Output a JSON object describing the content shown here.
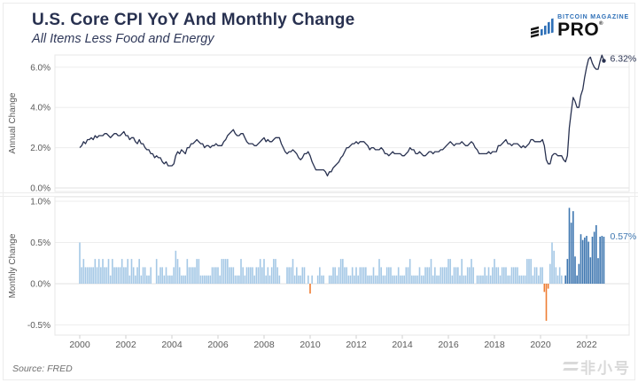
{
  "header": {
    "title": "U.S. Core CPI YoY And Monthly Change",
    "subtitle": "All Items Less Food and Energy",
    "logo": {
      "brand": "BITCOIN MAGAZINE",
      "product": "PRO",
      "reg": "®"
    }
  },
  "footer": {
    "source": "Source: FRED",
    "watermark": "非小号"
  },
  "colors": {
    "navy": "#283150",
    "bar_light": "#a5c8e6",
    "bar_recent": "#3d76b0",
    "bar_negative": "#ee7d33",
    "annotation_blue": "#3d76b0",
    "axis_text": "#595959",
    "grid": "#ededed",
    "border": "#e7e7e7"
  },
  "chart_data": [
    {
      "type": "line",
      "title": "U.S. Core CPI YoY And Monthly Change",
      "subtitle": "All Items Less Food and Energy",
      "series_name": "Core CPI Annual Change (YoY)",
      "ylabel": "Annual Change",
      "yticks": [
        0,
        2,
        4,
        6
      ],
      "ytick_labels": [
        "0.0%",
        "2.0%",
        "4.0%",
        "6.0%"
      ],
      "ylim": [
        -0.2,
        6.8
      ],
      "grid": true,
      "legend": "none",
      "x_start": "2000-01",
      "x_end": "2022-10",
      "x_tick_years": [
        2000,
        2002,
        2004,
        2006,
        2008,
        2010,
        2012,
        2014,
        2016,
        2018,
        2020,
        2022
      ],
      "last_value_label": "6.32%",
      "values": [
        2.0,
        2.1,
        2.3,
        2.2,
        2.4,
        2.4,
        2.5,
        2.4,
        2.6,
        2.5,
        2.6,
        2.6,
        2.6,
        2.7,
        2.7,
        2.6,
        2.5,
        2.6,
        2.7,
        2.7,
        2.6,
        2.6,
        2.7,
        2.8,
        2.6,
        2.6,
        2.4,
        2.5,
        2.5,
        2.3,
        2.2,
        2.4,
        2.2,
        2.2,
        2.0,
        1.9,
        1.9,
        1.7,
        1.7,
        1.5,
        1.6,
        1.5,
        1.5,
        1.3,
        1.2,
        1.3,
        1.1,
        1.1,
        1.1,
        1.2,
        1.6,
        1.8,
        1.7,
        1.9,
        1.8,
        1.7,
        2.0,
        2.0,
        2.2,
        2.2,
        2.3,
        2.4,
        2.3,
        2.2,
        2.2,
        2.0,
        2.1,
        2.1,
        2.0,
        2.1,
        2.1,
        2.2,
        2.1,
        2.1,
        2.1,
        2.3,
        2.4,
        2.6,
        2.7,
        2.8,
        2.9,
        2.7,
        2.6,
        2.6,
        2.7,
        2.7,
        2.5,
        2.3,
        2.2,
        2.2,
        2.2,
        2.1,
        2.1,
        2.2,
        2.3,
        2.4,
        2.5,
        2.3,
        2.4,
        2.3,
        2.3,
        2.4,
        2.5,
        2.5,
        2.5,
        2.2,
        2.0,
        1.8,
        1.7,
        1.8,
        1.8,
        1.9,
        1.8,
        1.7,
        1.5,
        1.4,
        1.5,
        1.7,
        1.7,
        1.8,
        1.6,
        1.3,
        1.1,
        0.9,
        0.9,
        0.9,
        0.9,
        0.9,
        0.8,
        0.6,
        0.8,
        0.8,
        1.0,
        1.1,
        1.2,
        1.3,
        1.5,
        1.6,
        1.8,
        2.0,
        2.0,
        2.1,
        2.2,
        2.2,
        2.3,
        2.2,
        2.3,
        2.3,
        2.3,
        2.2,
        2.1,
        1.9,
        2.0,
        2.0,
        1.9,
        1.9,
        1.9,
        2.0,
        1.9,
        1.7,
        1.7,
        1.6,
        1.7,
        1.8,
        1.7,
        1.7,
        1.7,
        1.7,
        1.6,
        1.6,
        1.7,
        1.8,
        2.0,
        1.9,
        1.9,
        1.7,
        1.7,
        1.8,
        1.7,
        1.6,
        1.6,
        1.7,
        1.8,
        1.8,
        1.7,
        1.8,
        1.8,
        1.8,
        1.9,
        1.9,
        2.0,
        2.1,
        2.2,
        2.3,
        2.2,
        2.1,
        2.2,
        2.2,
        2.2,
        2.3,
        2.2,
        2.1,
        2.1,
        2.2,
        2.3,
        2.2,
        2.0,
        1.9,
        1.7,
        1.7,
        1.7,
        1.7,
        1.7,
        1.8,
        1.7,
        1.8,
        1.8,
        1.8,
        2.1,
        2.1,
        2.2,
        2.3,
        2.4,
        2.2,
        2.2,
        2.1,
        2.2,
        2.2,
        2.2,
        2.1,
        2.0,
        2.1,
        2.0,
        2.1,
        2.2,
        2.4,
        2.4,
        2.3,
        2.3,
        2.3,
        2.3,
        2.4,
        2.1,
        1.4,
        1.2,
        1.2,
        1.6,
        1.7,
        1.7,
        1.6,
        1.6,
        1.6,
        1.4,
        1.3,
        1.6,
        3.0,
        3.8,
        4.5,
        4.3,
        4.0,
        4.0,
        4.6,
        4.9,
        5.5,
        6.0,
        6.4,
        6.5,
        6.2,
        6.0,
        5.9,
        5.9,
        6.3,
        6.6,
        6.32
      ]
    },
    {
      "type": "bar",
      "series_name": "Core CPI Monthly Change (MoM)",
      "ylabel": "Monthly Change",
      "yticks": [
        1.0,
        0.5,
        0.0,
        -0.5
      ],
      "ytick_labels": [
        "1.0%",
        "0.5%",
        "0.0%",
        "-0.5%"
      ],
      "ylim": [
        -0.65,
        1.05
      ],
      "grid": true,
      "legend": "none",
      "x_start": "2000-01",
      "x_end": "2022-10",
      "x_tick_years": [
        2000,
        2002,
        2004,
        2006,
        2008,
        2010,
        2012,
        2014,
        2016,
        2018,
        2020,
        2022
      ],
      "last_value_label": "0.57%",
      "recent_start_index": 252,
      "values": [
        0.5,
        0.2,
        0.3,
        0.2,
        0.2,
        0.2,
        0.2,
        0.2,
        0.3,
        0.2,
        0.3,
        0.2,
        0.3,
        0.2,
        0.2,
        0.3,
        0.1,
        0.3,
        0.2,
        0.2,
        0.2,
        0.2,
        0.3,
        0.2,
        0.2,
        0.3,
        0.1,
        0.3,
        0.2,
        0.1,
        0.2,
        0.3,
        0.1,
        0.2,
        0.2,
        0.1,
        0.1,
        0.2,
        0.0,
        0.0,
        0.3,
        0.1,
        0.2,
        0.2,
        0.1,
        0.2,
        0.1,
        0.1,
        0.1,
        0.2,
        0.4,
        0.3,
        0.2,
        0.1,
        0.1,
        0.1,
        0.3,
        0.2,
        0.2,
        0.2,
        0.2,
        0.3,
        0.3,
        0.1,
        0.1,
        0.1,
        0.1,
        0.1,
        0.1,
        0.2,
        0.2,
        0.2,
        0.2,
        0.1,
        0.3,
        0.3,
        0.3,
        0.3,
        0.2,
        0.2,
        0.2,
        0.1,
        0.1,
        0.1,
        0.3,
        0.2,
        0.1,
        0.2,
        0.2,
        0.2,
        0.2,
        0.1,
        0.2,
        0.2,
        0.3,
        0.2,
        0.3,
        0.1,
        0.2,
        0.1,
        0.2,
        0.3,
        0.3,
        0.2,
        0.1,
        0.0,
        0.0,
        0.0,
        0.2,
        0.2,
        0.2,
        0.3,
        0.1,
        0.2,
        0.1,
        0.1,
        0.2,
        0.2,
        0.0,
        0.1,
        -0.12,
        0.1,
        0.0,
        0.0,
        0.1,
        0.2,
        0.1,
        0.1,
        0.0,
        0.0,
        0.1,
        0.1,
        0.2,
        0.2,
        0.1,
        0.2,
        0.3,
        0.3,
        0.2,
        0.2,
        0.1,
        0.1,
        0.2,
        0.1,
        0.2,
        0.1,
        0.2,
        0.2,
        0.2,
        0.2,
        0.1,
        0.1,
        0.1,
        0.2,
        0.1,
        0.1,
        0.3,
        0.2,
        0.1,
        0.1,
        0.2,
        0.2,
        0.2,
        0.1,
        0.1,
        0.1,
        0.2,
        0.1,
        0.1,
        0.1,
        0.2,
        0.2,
        0.3,
        0.1,
        0.1,
        0.1,
        0.1,
        0.2,
        0.1,
        0.1,
        0.2,
        0.2,
        0.2,
        0.3,
        0.1,
        0.2,
        0.1,
        0.1,
        0.2,
        0.2,
        0.2,
        0.2,
        0.3,
        0.3,
        0.1,
        0.2,
        0.2,
        0.2,
        0.1,
        0.3,
        0.1,
        0.1,
        0.2,
        0.2,
        0.3,
        0.2,
        0.0,
        0.1,
        0.1,
        0.1,
        0.1,
        0.2,
        0.1,
        0.2,
        0.1,
        0.2,
        0.3,
        0.2,
        0.2,
        0.1,
        0.2,
        0.2,
        0.2,
        0.1,
        0.1,
        0.2,
        0.2,
        0.2,
        0.2,
        0.1,
        0.1,
        0.1,
        0.1,
        0.3,
        0.3,
        0.3,
        0.1,
        0.2,
        0.2,
        0.1,
        0.2,
        0.2,
        -0.1,
        -0.45,
        -0.06,
        0.24,
        0.5,
        0.4,
        0.2,
        0.1,
        0.2,
        0.1,
        0.0,
        0.1,
        0.3,
        0.92,
        0.74,
        0.88,
        0.33,
        0.1,
        0.24,
        0.6,
        0.53,
        0.56,
        0.58,
        0.51,
        0.32,
        0.57,
        0.63,
        0.71,
        0.31,
        0.57,
        0.58,
        0.57
      ]
    }
  ]
}
